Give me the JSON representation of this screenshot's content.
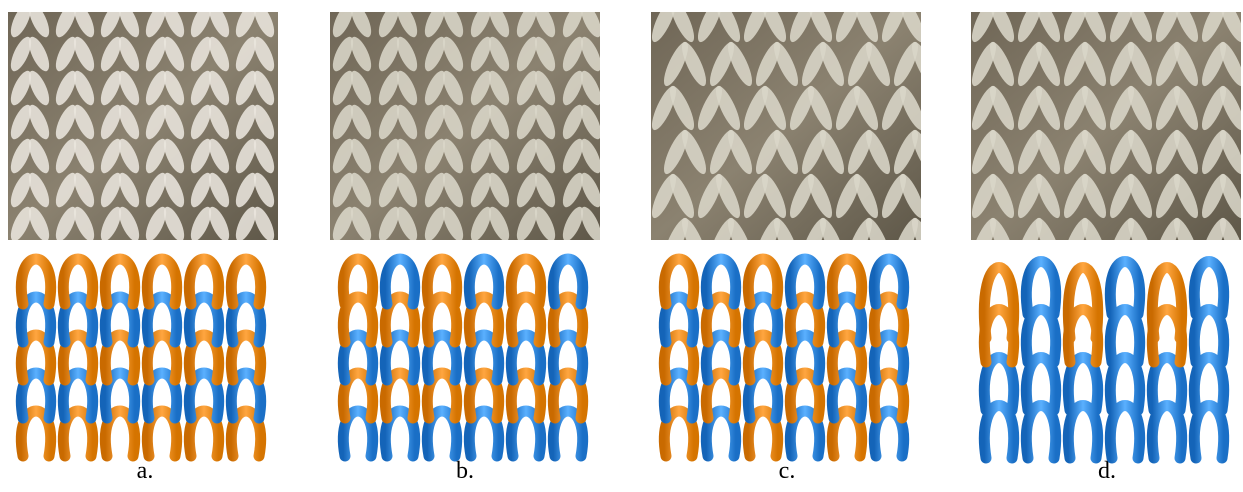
{
  "panels": [
    {
      "label": "a."
    },
    {
      "label": "b."
    },
    {
      "label": "c."
    },
    {
      "label": "d."
    }
  ]
}
